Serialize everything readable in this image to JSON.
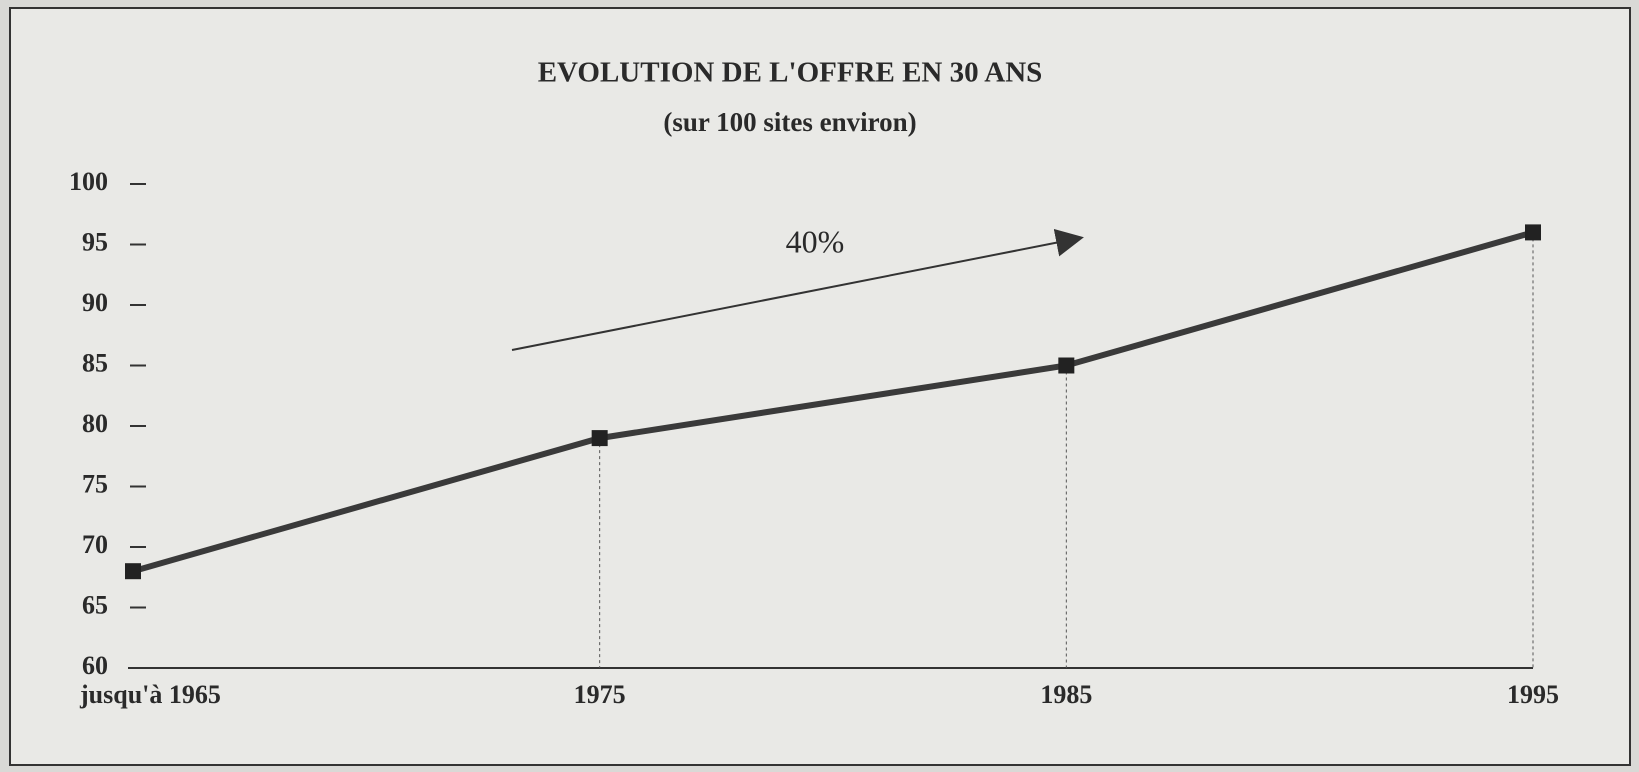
{
  "chart_data": {
    "type": "line",
    "title": "EVOLUTION DE L'OFFRE EN 30 ANS",
    "subtitle": "(sur 100 sites environ)",
    "annotation": "40%",
    "categories": [
      "jusqu'à 1965",
      "1975",
      "1985",
      "1995"
    ],
    "values": [
      68,
      79,
      85,
      96
    ],
    "color": "#3a3a3a",
    "ylim": [
      60,
      100
    ],
    "yticks": [
      60,
      65,
      70,
      75,
      80,
      85,
      90,
      95,
      100
    ],
    "grid": false,
    "drop_lines": true
  }
}
